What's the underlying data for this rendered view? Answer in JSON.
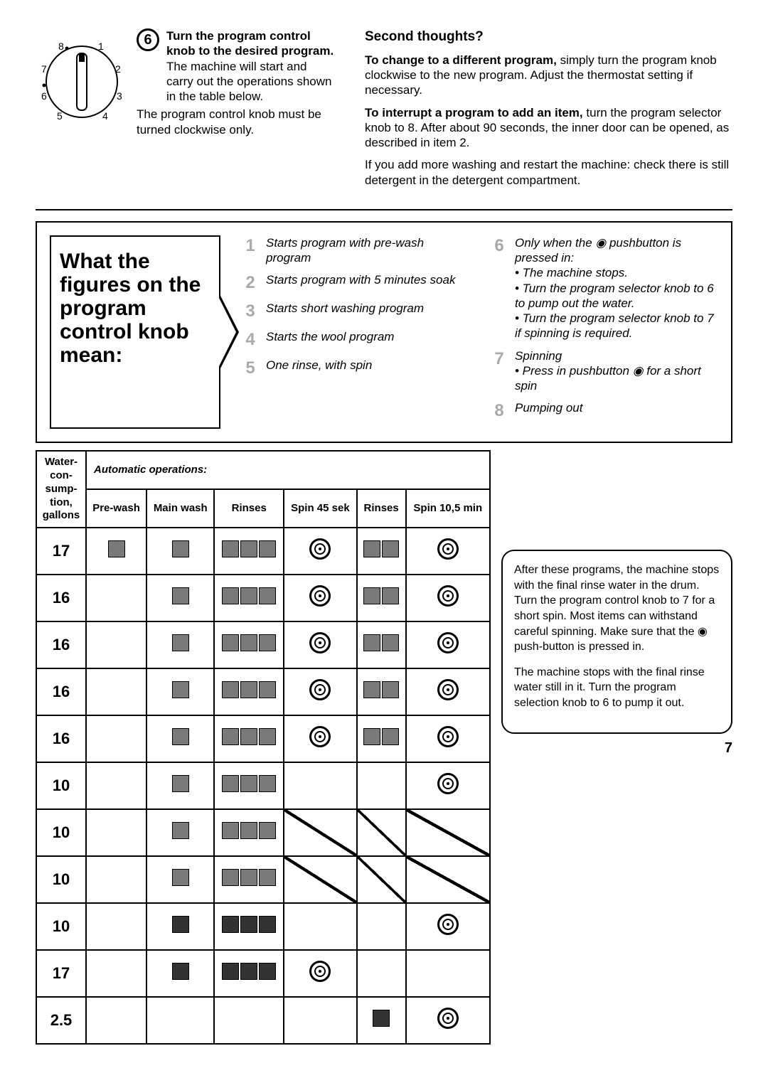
{
  "page_number": "7",
  "top": {
    "step_number": "6",
    "left_heading": "Turn the program control knob to the desired program.",
    "left_body1": "The machine will start and carry out the operations shown in the table below.",
    "left_body2": "The program control knob must be turned clockwise only.",
    "right_heading1": "Second thoughts?",
    "right_heading2": "To change to a different program,",
    "right_body2": "simply turn the program knob clockwise to the new program. Adjust the thermostat setting if necessary.",
    "right_heading3": "To interrupt a program to add an item,",
    "right_body3": "turn the program selector knob to 8. After about 90 seconds, the inner door can be opened, as described in item 2.",
    "right_body4": "If you add more washing and restart the machine: check there is still detergent in the detergent compartment."
  },
  "dial_labels": [
    "1",
    "2",
    "3",
    "4",
    "5",
    "6",
    "7",
    "8"
  ],
  "mid": {
    "title": "What the figures on the program control knob mean:",
    "col1": [
      {
        "n": "1",
        "t": "Starts program with pre-wash program"
      },
      {
        "n": "2",
        "t": "Starts program with 5 minutes soak"
      },
      {
        "n": "3",
        "t": "Starts short washing program"
      },
      {
        "n": "4",
        "t": "Starts the wool program"
      },
      {
        "n": "5",
        "t": "One rinse, with spin"
      }
    ],
    "col2_6_head": "Only when the ◉ pushbutton is pressed in:",
    "col2_6_items": [
      "The machine stops.",
      "Turn the program selector knob to 6 to pump out the water.",
      "Turn the program selector knob to 7 if spinning is required."
    ],
    "col2_7": {
      "n": "7",
      "t": "Spinning",
      "sub": "Press in pushbutton ◉ for a short spin"
    },
    "col2_8": {
      "n": "8",
      "t": "Pumping out"
    }
  },
  "table": {
    "header_ops": "Automatic operations:",
    "col_water": "Water-con-sump-tion, gallons",
    "cols": [
      "Pre-wash",
      "Main wash",
      "Rinses",
      "Spin 45 sek",
      "Rinses",
      "Spin 10,5 min"
    ],
    "rows": [
      {
        "water": "17",
        "pre": 1,
        "main": 1,
        "r1": 3,
        "s1": true,
        "r2": 2,
        "s2": true
      },
      {
        "water": "16",
        "pre": 0,
        "main": 1,
        "r1": 3,
        "s1": true,
        "r2": 2,
        "s2": true
      },
      {
        "water": "16",
        "pre": 0,
        "main": 1,
        "r1": 3,
        "s1": true,
        "r2": 2,
        "s2": true
      },
      {
        "water": "16",
        "pre": 0,
        "main": 1,
        "r1": 3,
        "s1": true,
        "r2": 2,
        "s2": true
      },
      {
        "water": "16",
        "pre": 0,
        "main": 1,
        "r1": 3,
        "s1": true,
        "r2": 2,
        "s2": true
      },
      {
        "water": "10",
        "pre": 0,
        "main": 1,
        "r1": 3,
        "s1": false,
        "r2": 0,
        "s2": true,
        "diag": false
      },
      {
        "water": "10",
        "pre": 0,
        "main": 1,
        "r1": 3,
        "s1": false,
        "r2": 0,
        "s2": false,
        "diag": true
      },
      {
        "water": "10",
        "pre": 0,
        "main": 1,
        "r1": 3,
        "s1": false,
        "r2": 0,
        "s2": false,
        "diag": true
      },
      {
        "water": "10",
        "pre": 0,
        "main": 1,
        "r1": 3,
        "s1": false,
        "r2": 0,
        "s2": true,
        "dark": true
      },
      {
        "water": "17",
        "pre": 0,
        "main": 1,
        "r1": 3,
        "s1": true,
        "r2": 0,
        "s2": false,
        "dark": true
      },
      {
        "water": "2.5",
        "pre": 0,
        "main": 0,
        "r1": 0,
        "s1": false,
        "r2": 1,
        "s2": true,
        "dark": true
      }
    ]
  },
  "side_note": {
    "p1": "After these programs, the machine stops with the final rinse water in the drum. Turn the program control knob to 7 for a short spin. Most items can withstand careful spinning. Make sure that the ◉ push-button is pressed in.",
    "p2": "The machine stops with the final rinse water still in it. Turn the program selection knob to 6 to pump it out."
  }
}
